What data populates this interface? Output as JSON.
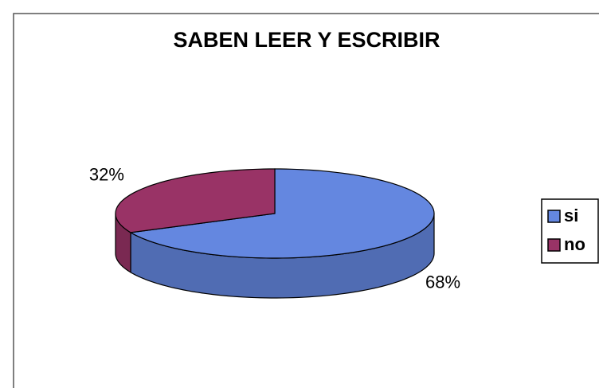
{
  "chart_data": {
    "type": "pie3d",
    "title": "SABEN LEER Y ESCRIBIR",
    "categories": [
      "si",
      "no"
    ],
    "values": [
      68,
      32
    ],
    "value_labels": [
      "68%",
      "32%"
    ],
    "colors": [
      "#6487e0",
      "#993366"
    ],
    "start_angle": 90,
    "legend": "right"
  }
}
